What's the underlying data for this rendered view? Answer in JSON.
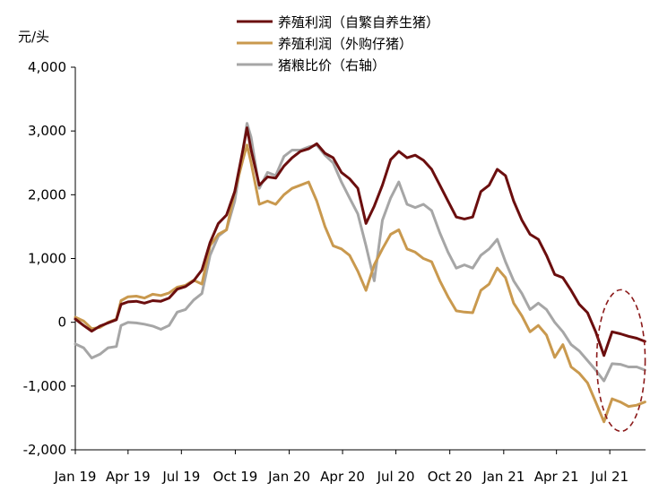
{
  "chart_data": {
    "type": "line",
    "unit": "元/头",
    "ylim": [
      -2000,
      4000
    ],
    "y_ticks": [
      "4,000",
      "3,000",
      "2,000",
      "1,000",
      "0",
      "-1,000",
      "-2,000"
    ],
    "y_tick_values": [
      4000,
      3000,
      2000,
      1000,
      0,
      -1000,
      -2000
    ],
    "x_ticks": [
      "Jan 19",
      "Apr 19",
      "Jul 19",
      "Oct 19",
      "Jan 20",
      "Apr 20",
      "Jul 20",
      "Oct 20",
      "Jan 21",
      "Apr 21",
      "Jul 21"
    ],
    "x_tick_values": [
      "2019-01-01",
      "2019-04-01",
      "2019-07-01",
      "2019-10-01",
      "2020-01-01",
      "2020-04-01",
      "2020-07-01",
      "2020-10-01",
      "2021-01-01",
      "2021-04-01",
      "2021-07-01"
    ],
    "xlim": [
      "2019-01-01",
      "2021-08-31"
    ],
    "grid": false,
    "legend_position": "top",
    "annotation": "dashed ellipse highlighting Jul–Aug 2021",
    "annotation_color": "#8B1A1A",
    "series": [
      {
        "name": "养殖利润（自繁自养生猪）",
        "color": "#6B0E0E",
        "points": [
          [
            "2019-01-01",
            50
          ],
          [
            "2019-01-15",
            -50
          ],
          [
            "2019-01-29",
            -140
          ],
          [
            "2019-02-12",
            -60
          ],
          [
            "2019-02-26",
            -10
          ],
          [
            "2019-03-12",
            40
          ],
          [
            "2019-03-20",
            280
          ],
          [
            "2019-04-01",
            320
          ],
          [
            "2019-04-15",
            330
          ],
          [
            "2019-04-29",
            300
          ],
          [
            "2019-05-13",
            340
          ],
          [
            "2019-05-27",
            330
          ],
          [
            "2019-06-10",
            380
          ],
          [
            "2019-06-24",
            520
          ],
          [
            "2019-07-08",
            560
          ],
          [
            "2019-07-22",
            650
          ],
          [
            "2019-08-05",
            820
          ],
          [
            "2019-08-19",
            1250
          ],
          [
            "2019-09-02",
            1550
          ],
          [
            "2019-09-16",
            1680
          ],
          [
            "2019-09-30",
            2050
          ],
          [
            "2019-10-14",
            2700
          ],
          [
            "2019-10-21",
            3050
          ],
          [
            "2019-10-28",
            2700
          ],
          [
            "2019-11-11",
            2150
          ],
          [
            "2019-11-25",
            2280
          ],
          [
            "2019-12-09",
            2260
          ],
          [
            "2019-12-23",
            2450
          ],
          [
            "2020-01-06",
            2580
          ],
          [
            "2020-01-20",
            2680
          ],
          [
            "2020-02-03",
            2720
          ],
          [
            "2020-02-17",
            2800
          ],
          [
            "2020-03-02",
            2650
          ],
          [
            "2020-03-16",
            2580
          ],
          [
            "2020-03-30",
            2350
          ],
          [
            "2020-04-13",
            2250
          ],
          [
            "2020-04-27",
            2100
          ],
          [
            "2020-05-11",
            1550
          ],
          [
            "2020-05-25",
            1820
          ],
          [
            "2020-06-08",
            2150
          ],
          [
            "2020-06-22",
            2550
          ],
          [
            "2020-07-06",
            2680
          ],
          [
            "2020-07-20",
            2580
          ],
          [
            "2020-08-03",
            2620
          ],
          [
            "2020-08-17",
            2540
          ],
          [
            "2020-08-31",
            2400
          ],
          [
            "2020-09-14",
            2150
          ],
          [
            "2020-09-28",
            1900
          ],
          [
            "2020-10-12",
            1650
          ],
          [
            "2020-10-26",
            1620
          ],
          [
            "2020-11-09",
            1650
          ],
          [
            "2020-11-23",
            2050
          ],
          [
            "2020-12-07",
            2150
          ],
          [
            "2020-12-21",
            2400
          ],
          [
            "2021-01-04",
            2300
          ],
          [
            "2021-01-18",
            1900
          ],
          [
            "2021-02-01",
            1600
          ],
          [
            "2021-02-15",
            1380
          ],
          [
            "2021-03-01",
            1300
          ],
          [
            "2021-03-15",
            1050
          ],
          [
            "2021-03-29",
            750
          ],
          [
            "2021-04-12",
            700
          ],
          [
            "2021-04-26",
            500
          ],
          [
            "2021-05-10",
            280
          ],
          [
            "2021-05-24",
            150
          ],
          [
            "2021-06-07",
            -150
          ],
          [
            "2021-06-21",
            -520
          ],
          [
            "2021-07-05",
            -150
          ],
          [
            "2021-07-19",
            -180
          ],
          [
            "2021-08-02",
            -220
          ],
          [
            "2021-08-16",
            -250
          ],
          [
            "2021-08-30",
            -300
          ]
        ]
      },
      {
        "name": "养殖利润（外购仔猪）",
        "color": "#C9994E",
        "points": [
          [
            "2019-01-01",
            80
          ],
          [
            "2019-01-15",
            20
          ],
          [
            "2019-01-29",
            -100
          ],
          [
            "2019-02-12",
            -80
          ],
          [
            "2019-02-26",
            0
          ],
          [
            "2019-03-12",
            50
          ],
          [
            "2019-03-20",
            340
          ],
          [
            "2019-04-01",
            400
          ],
          [
            "2019-04-15",
            410
          ],
          [
            "2019-04-29",
            380
          ],
          [
            "2019-05-13",
            440
          ],
          [
            "2019-05-27",
            420
          ],
          [
            "2019-06-10",
            460
          ],
          [
            "2019-06-24",
            550
          ],
          [
            "2019-07-08",
            580
          ],
          [
            "2019-07-22",
            660
          ],
          [
            "2019-08-05",
            600
          ],
          [
            "2019-08-19",
            1200
          ],
          [
            "2019-09-02",
            1380
          ],
          [
            "2019-09-16",
            1450
          ],
          [
            "2019-09-30",
            2050
          ],
          [
            "2019-10-14",
            2550
          ],
          [
            "2019-10-21",
            2780
          ],
          [
            "2019-10-28",
            2500
          ],
          [
            "2019-11-11",
            1850
          ],
          [
            "2019-11-25",
            1900
          ],
          [
            "2019-12-09",
            1850
          ],
          [
            "2019-12-23",
            2000
          ],
          [
            "2020-01-06",
            2100
          ],
          [
            "2020-01-20",
            2150
          ],
          [
            "2020-02-03",
            2200
          ],
          [
            "2020-02-17",
            1900
          ],
          [
            "2020-03-02",
            1500
          ],
          [
            "2020-03-16",
            1200
          ],
          [
            "2020-03-30",
            1150
          ],
          [
            "2020-04-13",
            1050
          ],
          [
            "2020-04-27",
            800
          ],
          [
            "2020-05-11",
            500
          ],
          [
            "2020-05-25",
            900
          ],
          [
            "2020-06-08",
            1150
          ],
          [
            "2020-06-22",
            1380
          ],
          [
            "2020-07-06",
            1450
          ],
          [
            "2020-07-20",
            1150
          ],
          [
            "2020-08-03",
            1100
          ],
          [
            "2020-08-17",
            1000
          ],
          [
            "2020-08-31",
            950
          ],
          [
            "2020-09-14",
            650
          ],
          [
            "2020-09-28",
            400
          ],
          [
            "2020-10-12",
            180
          ],
          [
            "2020-10-26",
            160
          ],
          [
            "2020-11-09",
            150
          ],
          [
            "2020-11-23",
            500
          ],
          [
            "2020-12-07",
            600
          ],
          [
            "2020-12-21",
            850
          ],
          [
            "2021-01-04",
            700
          ],
          [
            "2021-01-18",
            300
          ],
          [
            "2021-02-01",
            100
          ],
          [
            "2021-02-15",
            -150
          ],
          [
            "2021-03-01",
            -50
          ],
          [
            "2021-03-15",
            -200
          ],
          [
            "2021-03-29",
            -550
          ],
          [
            "2021-04-12",
            -350
          ],
          [
            "2021-04-26",
            -700
          ],
          [
            "2021-05-10",
            -800
          ],
          [
            "2021-05-24",
            -950
          ],
          [
            "2021-06-07",
            -1250
          ],
          [
            "2021-06-21",
            -1560
          ],
          [
            "2021-07-05",
            -1200
          ],
          [
            "2021-07-19",
            -1250
          ],
          [
            "2021-08-02",
            -1320
          ],
          [
            "2021-08-16",
            -1300
          ],
          [
            "2021-08-30",
            -1250
          ]
        ]
      },
      {
        "name": "猪粮比价（右轴）",
        "color": "#A6A6A6",
        "points": [
          [
            "2019-01-01",
            -340
          ],
          [
            "2019-01-15",
            -400
          ],
          [
            "2019-01-29",
            -560
          ],
          [
            "2019-02-12",
            -500
          ],
          [
            "2019-02-26",
            -400
          ],
          [
            "2019-03-12",
            -380
          ],
          [
            "2019-03-20",
            -50
          ],
          [
            "2019-04-01",
            0
          ],
          [
            "2019-04-15",
            -10
          ],
          [
            "2019-04-29",
            -30
          ],
          [
            "2019-05-13",
            -60
          ],
          [
            "2019-05-27",
            -110
          ],
          [
            "2019-06-10",
            -50
          ],
          [
            "2019-06-24",
            160
          ],
          [
            "2019-07-08",
            200
          ],
          [
            "2019-07-22",
            350
          ],
          [
            "2019-08-05",
            450
          ],
          [
            "2019-08-19",
            1050
          ],
          [
            "2019-09-02",
            1350
          ],
          [
            "2019-09-16",
            1450
          ],
          [
            "2019-09-30",
            1900
          ],
          [
            "2019-10-14",
            2700
          ],
          [
            "2019-10-21",
            3120
          ],
          [
            "2019-10-28",
            2900
          ],
          [
            "2019-11-11",
            2100
          ],
          [
            "2019-11-25",
            2350
          ],
          [
            "2019-12-09",
            2300
          ],
          [
            "2019-12-23",
            2600
          ],
          [
            "2020-01-06",
            2700
          ],
          [
            "2020-01-20",
            2700
          ],
          [
            "2020-02-03",
            2750
          ],
          [
            "2020-02-17",
            2780
          ],
          [
            "2020-03-02",
            2620
          ],
          [
            "2020-03-16",
            2500
          ],
          [
            "2020-03-30",
            2200
          ],
          [
            "2020-04-13",
            1950
          ],
          [
            "2020-04-27",
            1700
          ],
          [
            "2020-05-11",
            1200
          ],
          [
            "2020-05-25",
            650
          ],
          [
            "2020-06-08",
            1600
          ],
          [
            "2020-06-22",
            1950
          ],
          [
            "2020-07-06",
            2200
          ],
          [
            "2020-07-20",
            1850
          ],
          [
            "2020-08-03",
            1800
          ],
          [
            "2020-08-17",
            1850
          ],
          [
            "2020-08-31",
            1750
          ],
          [
            "2020-09-14",
            1400
          ],
          [
            "2020-09-28",
            1100
          ],
          [
            "2020-10-12",
            850
          ],
          [
            "2020-10-26",
            900
          ],
          [
            "2020-11-09",
            850
          ],
          [
            "2020-11-23",
            1050
          ],
          [
            "2020-12-07",
            1150
          ],
          [
            "2020-12-21",
            1300
          ],
          [
            "2021-01-04",
            950
          ],
          [
            "2021-01-18",
            650
          ],
          [
            "2021-02-01",
            450
          ],
          [
            "2021-02-15",
            200
          ],
          [
            "2021-03-01",
            300
          ],
          [
            "2021-03-15",
            200
          ],
          [
            "2021-03-29",
            0
          ],
          [
            "2021-04-12",
            -150
          ],
          [
            "2021-04-26",
            -350
          ],
          [
            "2021-05-10",
            -450
          ],
          [
            "2021-05-24",
            -600
          ],
          [
            "2021-06-07",
            -750
          ],
          [
            "2021-06-21",
            -920
          ],
          [
            "2021-07-05",
            -650
          ],
          [
            "2021-07-19",
            -660
          ],
          [
            "2021-08-02",
            -700
          ],
          [
            "2021-08-16",
            -700
          ],
          [
            "2021-08-30",
            -750
          ]
        ]
      }
    ]
  }
}
